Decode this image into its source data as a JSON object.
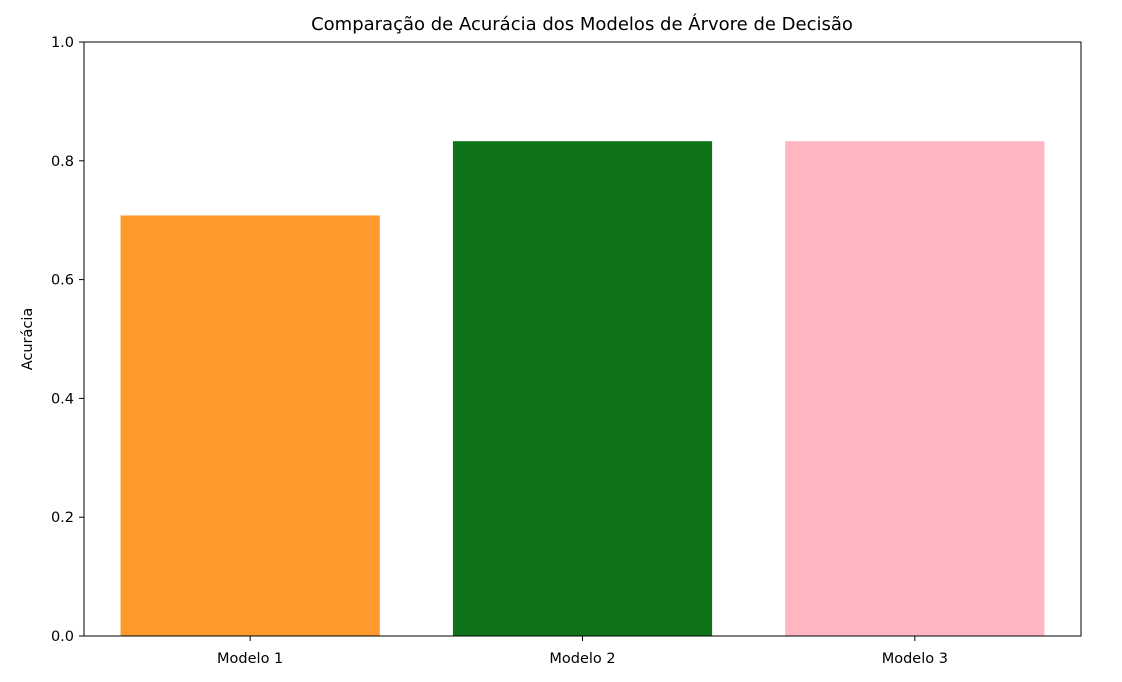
{
  "chart_data": {
    "type": "bar",
    "title": "Comparação de Acurácia dos Modelos de Árvore de Decisão",
    "xlabel": "",
    "ylabel": "Acurácia",
    "categories": [
      "Modelo 1",
      "Modelo 2",
      "Modelo 3"
    ],
    "values": [
      0.708,
      0.833,
      0.833
    ],
    "colors": [
      "#fd9a2b",
      "#0e7319",
      "#ffb6c1"
    ],
    "ylim": [
      0,
      1.0
    ],
    "yticks": [
      "0.0",
      "0.2",
      "0.4",
      "0.6",
      "0.8",
      "1.0"
    ],
    "grid": false,
    "legend": "none"
  }
}
